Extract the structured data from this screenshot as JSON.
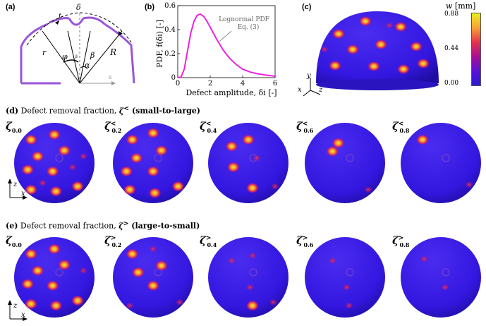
{
  "panels": {
    "a": {
      "label": "(a)",
      "symbols": [
        "t",
        "δ",
        "r",
        "φ",
        "ψ",
        "β",
        "α",
        "R",
        "x"
      ]
    },
    "b": {
      "label": "(b)"
    },
    "c": {
      "label": "(c)",
      "axes": [
        "y",
        "x",
        "z"
      ]
    },
    "d": {
      "label": "(d)",
      "title_pre": "Defect removal fraction, ",
      "title_sym": "ζ",
      "title_sup": "<",
      "title_post": " (small-to-large)"
    },
    "e": {
      "label": "(e)",
      "title_pre": "Defect removal fraction, ",
      "title_sym": "ζ",
      "title_sup": ">",
      "title_post": " (large-to-small)"
    }
  },
  "chart_data": {
    "type": "line",
    "title": "",
    "xlabel": "Defect amplitude, δ̄i [-]",
    "ylabel": "PDF, f(δ̄i) [-]",
    "xlim": [
      0,
      6
    ],
    "ylim": [
      0,
      0.6
    ],
    "xticks": [
      "0",
      "2",
      "4",
      "6"
    ],
    "yticks": [
      "0",
      "0.2",
      "0.4",
      "0.6"
    ],
    "annotation": [
      "Lognormal PDF",
      "Eq. (3)"
    ],
    "series": [
      {
        "name": "Lognormal PDF",
        "color": "#ee22dd",
        "x": [
          0.0,
          0.2,
          0.4,
          0.6,
          0.8,
          1.0,
          1.2,
          1.4,
          1.6,
          1.8,
          2.0,
          2.4,
          2.8,
          3.2,
          3.6,
          4.0,
          4.5,
          5.0,
          5.5,
          6.0
        ],
        "y": [
          0.0,
          0.004,
          0.07,
          0.22,
          0.37,
          0.47,
          0.52,
          0.53,
          0.51,
          0.47,
          0.42,
          0.32,
          0.23,
          0.16,
          0.11,
          0.07,
          0.045,
          0.03,
          0.02,
          0.012
        ]
      }
    ]
  },
  "colorbar": {
    "label": "w",
    "unit": "[mm]",
    "ticks": [
      "0.88",
      "0.44",
      "0.00"
    ],
    "colors": [
      "#e8ee20",
      "#f7a235",
      "#e4334f",
      "#a80f92",
      "#5a10d8",
      "#2a1ad0"
    ]
  },
  "rows": {
    "d": {
      "axes": [
        "z",
        "x"
      ],
      "items": [
        {
          "sub": "0.0",
          "sup": ""
        },
        {
          "sub": "0.2",
          "sup": "<"
        },
        {
          "sub": "0.4",
          "sup": "<"
        },
        {
          "sub": "0.6",
          "sup": "<"
        },
        {
          "sub": "0.8",
          "sup": "<"
        }
      ]
    },
    "e": {
      "axes": [
        "z",
        "x"
      ],
      "items": [
        {
          "sub": "0.0",
          "sup": ""
        },
        {
          "sub": "0.2",
          "sup": ">"
        },
        {
          "sub": "0.4",
          "sup": ">"
        },
        {
          "sub": "0.6",
          "sup": ">"
        },
        {
          "sub": "0.8",
          "sup": ">"
        }
      ]
    }
  },
  "colors": {
    "shell": "#3417e0",
    "shell_dark": "#1e0da0",
    "purple_line": "#9a55d8",
    "pdf": "#ee22dd"
  }
}
